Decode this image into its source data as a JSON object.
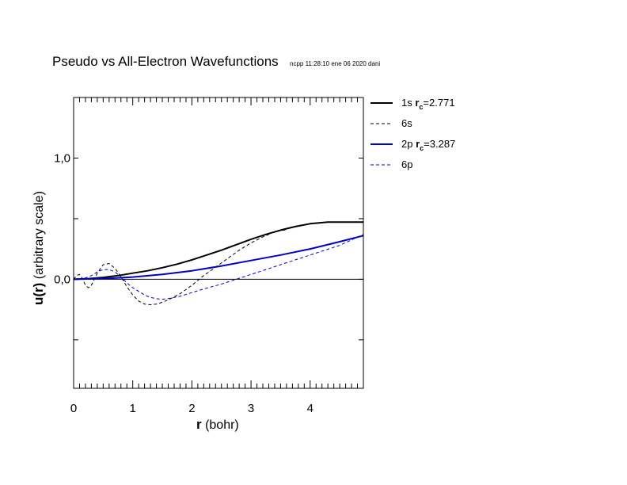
{
  "chart_data": {
    "type": "line",
    "title": "Pseudo vs All-Electron Wavefunctions",
    "stamp": "ncpp 11:28:10 ene 06 2020 dani",
    "xlabel": {
      "bold": "r",
      "rest": " (bohr)"
    },
    "ylabel": {
      "bold": "u(r)",
      "rest": "  (arbitrary scale)"
    },
    "xlim": [
      0,
      4.9
    ],
    "ylim": [
      -0.9,
      1.5
    ],
    "x_ticks": [
      0,
      1,
      2,
      3,
      4
    ],
    "x_tick_labels": [
      "0",
      "1",
      "2",
      "3",
      "4"
    ],
    "y_ticks": [
      0,
      1
    ],
    "y_tick_labels": [
      "0,0",
      "1,0"
    ],
    "zero_line": true,
    "grid": false,
    "legend_position": "right-outside",
    "series": [
      {
        "key": "1s",
        "legend": {
          "prefix": "1s ",
          "sym": "r",
          "sub": "c",
          "suffix": "=2.771"
        },
        "color": "#000000",
        "width": 2,
        "dash": "",
        "x": [
          0,
          0.25,
          0.5,
          0.75,
          1.0,
          1.25,
          1.5,
          1.75,
          2.0,
          2.25,
          2.5,
          2.75,
          3.0,
          3.25,
          3.5,
          3.75,
          4.0,
          4.3,
          4.9
        ],
        "y": [
          0.0,
          0.005,
          0.015,
          0.03,
          0.05,
          0.07,
          0.095,
          0.125,
          0.16,
          0.2,
          0.24,
          0.285,
          0.33,
          0.37,
          0.405,
          0.435,
          0.458,
          0.472,
          0.472
        ]
      },
      {
        "key": "6s",
        "legend": {
          "prefix": "6s",
          "sym": "",
          "sub": "",
          "suffix": ""
        },
        "color": "#000000",
        "width": 1,
        "dash": "4,3",
        "x": [
          0,
          0.05,
          0.1,
          0.15,
          0.2,
          0.25,
          0.3,
          0.35,
          0.4,
          0.5,
          0.6,
          0.7,
          0.8,
          0.9,
          1.0,
          1.1,
          1.2,
          1.3,
          1.4,
          1.5,
          1.6,
          1.8,
          2.0,
          2.2,
          2.4,
          2.6,
          2.8,
          3.0,
          3.2,
          3.4,
          3.6
        ],
        "y": [
          0.0,
          0.03,
          0.04,
          0.005,
          -0.05,
          -0.07,
          -0.05,
          0.0,
          0.05,
          0.12,
          0.13,
          0.09,
          0.02,
          -0.06,
          -0.13,
          -0.18,
          -0.205,
          -0.21,
          -0.205,
          -0.19,
          -0.17,
          -0.12,
          -0.05,
          0.03,
          0.1,
          0.17,
          0.24,
          0.3,
          0.35,
          0.39,
          0.41
        ]
      },
      {
        "key": "2p",
        "legend": {
          "prefix": "2p ",
          "sym": "r",
          "sub": "c",
          "suffix": "=3.287"
        },
        "color": "#0000cc",
        "width": 2,
        "dash": "",
        "x": [
          0,
          0.5,
          1.0,
          1.5,
          2.0,
          2.5,
          3.0,
          3.5,
          4.0,
          4.5,
          4.9
        ],
        "y": [
          0.0,
          0.005,
          0.018,
          0.04,
          0.07,
          0.11,
          0.155,
          0.2,
          0.25,
          0.31,
          0.36
        ]
      },
      {
        "key": "6p",
        "legend": {
          "prefix": "6p",
          "sym": "",
          "sub": "",
          "suffix": ""
        },
        "color": "#0000cc",
        "width": 1,
        "dash": "4,3",
        "x": [
          0,
          0.1,
          0.2,
          0.3,
          0.4,
          0.5,
          0.6,
          0.7,
          0.8,
          0.9,
          1.0,
          1.1,
          1.2,
          1.3,
          1.4,
          1.5,
          1.6,
          1.7,
          1.8,
          2.0,
          2.2,
          2.5,
          3.0,
          3.5,
          4.0,
          4.5,
          4.9
        ],
        "y": [
          0.0,
          0.0,
          0.01,
          0.03,
          0.06,
          0.08,
          0.08,
          0.06,
          0.02,
          -0.03,
          -0.07,
          -0.1,
          -0.13,
          -0.15,
          -0.16,
          -0.165,
          -0.16,
          -0.15,
          -0.14,
          -0.11,
          -0.08,
          -0.04,
          0.04,
          0.12,
          0.2,
          0.28,
          0.37
        ]
      }
    ]
  }
}
